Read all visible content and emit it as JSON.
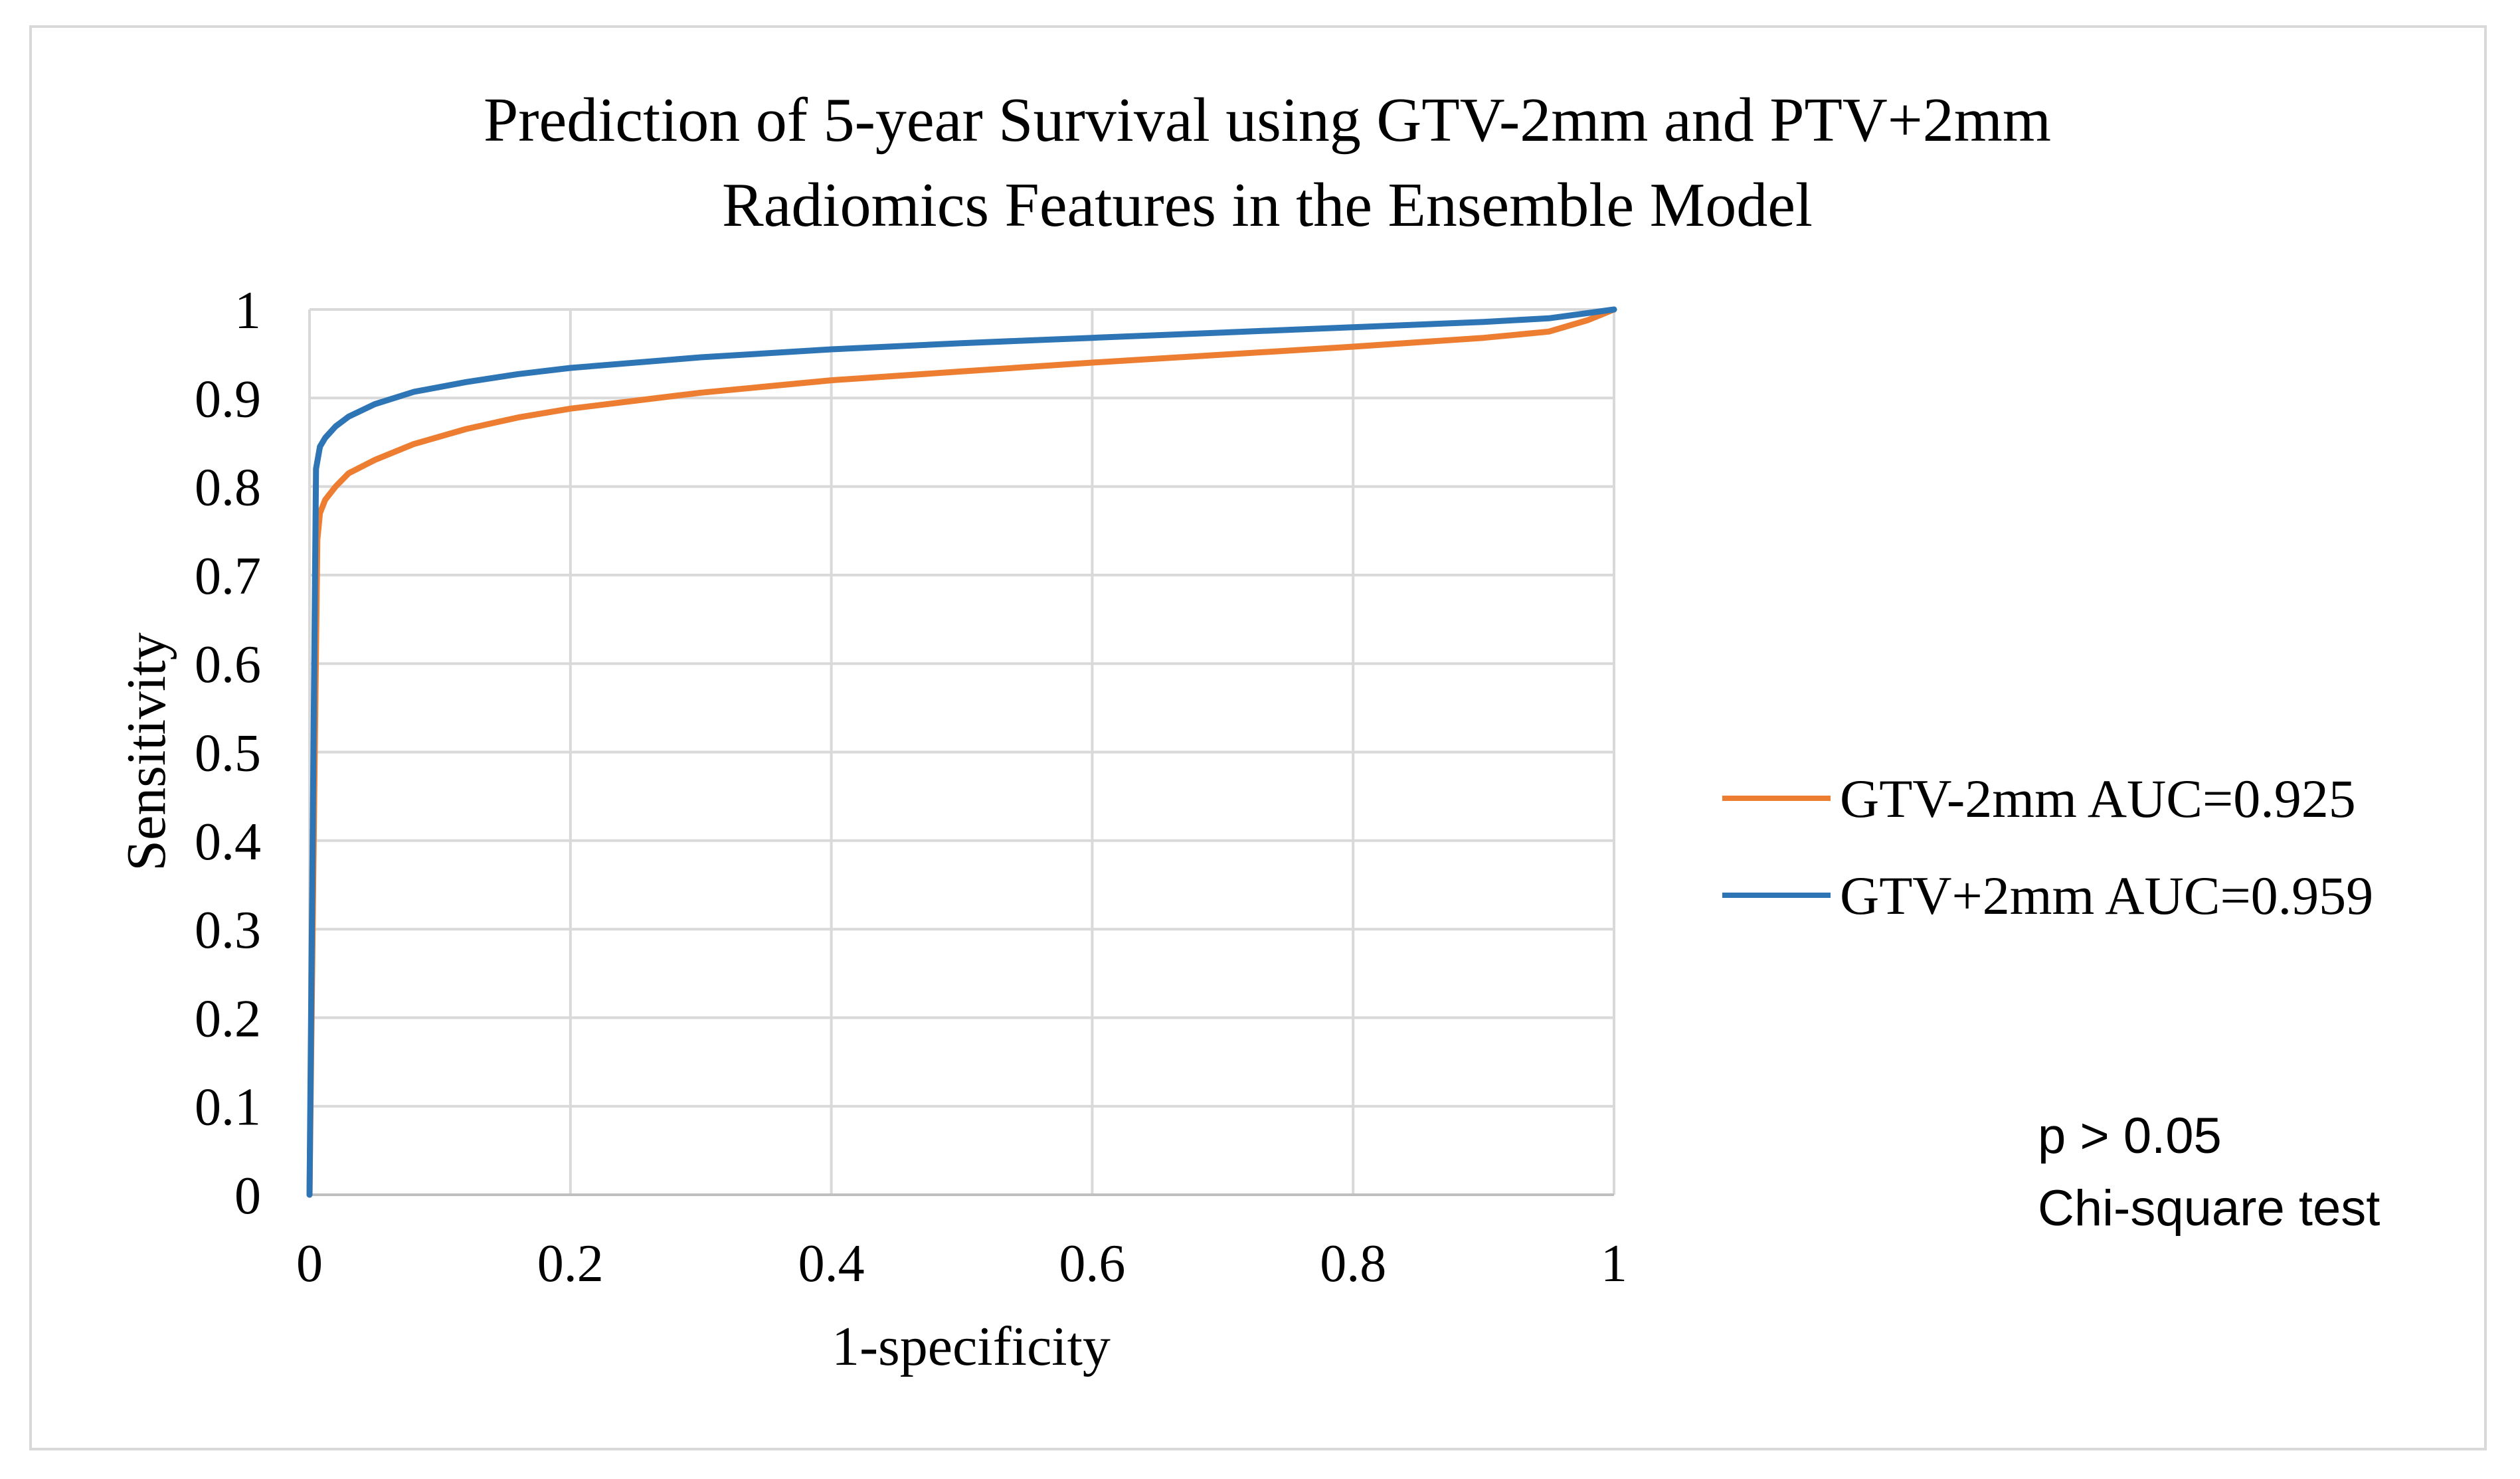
{
  "chart_data": {
    "type": "line",
    "title": "Prediction of 5-year Survival using GTV-2mm  and PTV+2mm",
    "subtitle": "Radiomics Features in the Ensemble Model",
    "xlabel": "1-specificity",
    "ylabel": "Sensitivity",
    "xlim": [
      0,
      1
    ],
    "ylim": [
      0,
      1
    ],
    "xticks": [
      "0",
      "0.2",
      "0.4",
      "0.6",
      "0.8",
      "1"
    ],
    "yticks": [
      "0",
      "0.1",
      "0.2",
      "0.3",
      "0.4",
      "0.5",
      "0.6",
      "0.7",
      "0.8",
      "0.9",
      "1"
    ],
    "grid": true,
    "legend_position": "right",
    "series": [
      {
        "name": "GTV-2mm AUC=0.925",
        "color": "#ED7D31",
        "points": [
          [
            0,
            0
          ],
          [
            0.004,
            0.5
          ],
          [
            0.006,
            0.74
          ],
          [
            0.008,
            0.77
          ],
          [
            0.012,
            0.785
          ],
          [
            0.02,
            0.8
          ],
          [
            0.03,
            0.815
          ],
          [
            0.05,
            0.83
          ],
          [
            0.08,
            0.848
          ],
          [
            0.12,
            0.865
          ],
          [
            0.16,
            0.878
          ],
          [
            0.2,
            0.888
          ],
          [
            0.3,
            0.906
          ],
          [
            0.4,
            0.92
          ],
          [
            0.5,
            0.93
          ],
          [
            0.6,
            0.94
          ],
          [
            0.7,
            0.949
          ],
          [
            0.8,
            0.958
          ],
          [
            0.9,
            0.968
          ],
          [
            0.95,
            0.975
          ],
          [
            0.98,
            0.988
          ],
          [
            1,
            1
          ]
        ]
      },
      {
        "name": "GTV+2mm AUC=0.959",
        "color": "#2E75B6",
        "points": [
          [
            0,
            0
          ],
          [
            0.003,
            0.5
          ],
          [
            0.005,
            0.82
          ],
          [
            0.008,
            0.845
          ],
          [
            0.012,
            0.855
          ],
          [
            0.02,
            0.868
          ],
          [
            0.03,
            0.879
          ],
          [
            0.05,
            0.893
          ],
          [
            0.08,
            0.907
          ],
          [
            0.12,
            0.918
          ],
          [
            0.16,
            0.927
          ],
          [
            0.2,
            0.934
          ],
          [
            0.3,
            0.946
          ],
          [
            0.4,
            0.955
          ],
          [
            0.5,
            0.962
          ],
          [
            0.6,
            0.968
          ],
          [
            0.7,
            0.974
          ],
          [
            0.8,
            0.98
          ],
          [
            0.9,
            0.986
          ],
          [
            0.95,
            0.99
          ],
          [
            1,
            1
          ]
        ]
      }
    ],
    "annotations": [
      "p > 0.05",
      "Chi-square test"
    ]
  }
}
